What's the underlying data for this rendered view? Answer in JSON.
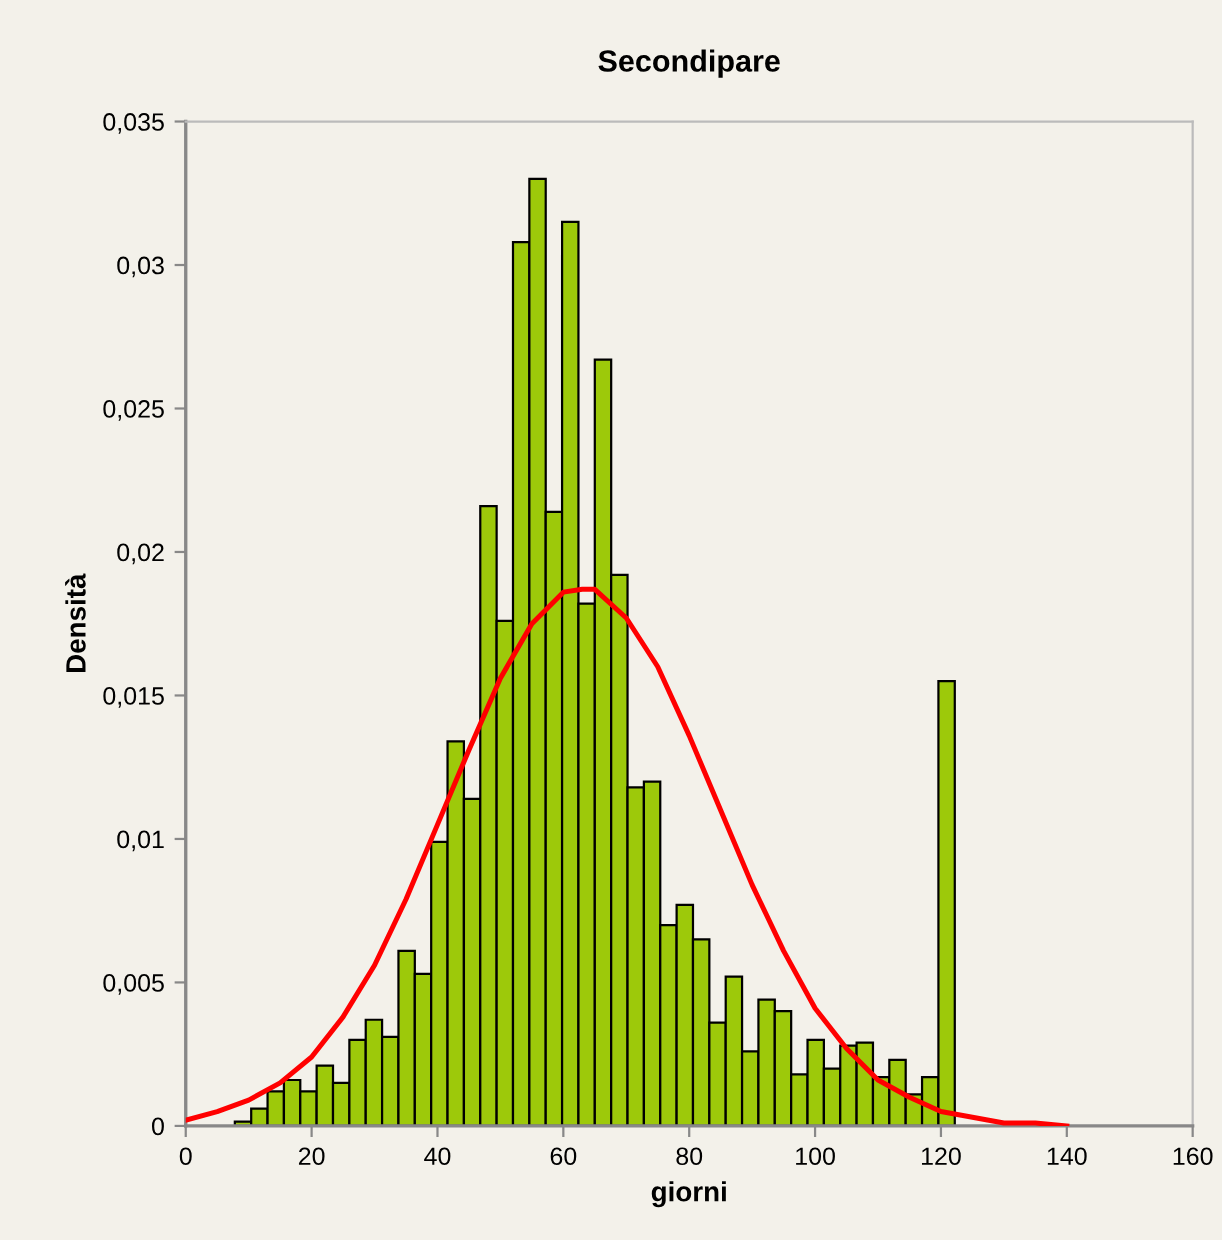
{
  "chart_data": {
    "type": "histogram",
    "title": "Secondipare",
    "xlabel": "giorni",
    "ylabel": "Densità",
    "bins": [
      0,
      2.6,
      5.2,
      7.8,
      10.4,
      13,
      15.6,
      18.2,
      20.8,
      23.4,
      26,
      28.6,
      31.2,
      33.8,
      36.4,
      39,
      41.6,
      44.2,
      46.8,
      49.4,
      52,
      54.6,
      57.2,
      59.8,
      62.4,
      65,
      67.6,
      70.2,
      72.8,
      75.4,
      78,
      80.6,
      83.2,
      85.8,
      88.4,
      91,
      93.6,
      96.2,
      98.8,
      101.4,
      104,
      106.6,
      109.2,
      111.8,
      114.4,
      117,
      119.6,
      122.2,
      124.8,
      127.4,
      130
    ],
    "values": [
      0,
      0,
      0,
      0.00015,
      0.0006,
      0.0012,
      0.0016,
      0.0012,
      0.0021,
      0.0015,
      0.003,
      0.0037,
      0.0031,
      0.0061,
      0.0053,
      0.0099,
      0.0134,
      0.0114,
      0.0216,
      0.0176,
      0.0308,
      0.033,
      0.0214,
      0.0315,
      0.0182,
      0.0267,
      0.0192,
      0.0118,
      0.012,
      0.007,
      0.0077,
      0.0065,
      0.0036,
      0.0052,
      0.0026,
      0.0044,
      0.004,
      0.0018,
      0.003,
      0.002,
      0.0028,
      0.0029,
      0.0017,
      0.0023,
      0.0011,
      0.0017,
      0.0155,
      0,
      0,
      0
    ],
    "color": "#9dc90a",
    "series": [
      {
        "type": "line",
        "color": "#ff0000",
        "x": [
          0,
          5,
          10,
          15,
          20,
          25,
          30,
          35,
          40,
          45,
          50,
          55,
          60,
          63,
          65,
          70,
          75,
          80,
          85,
          90,
          95,
          100,
          105,
          110,
          115,
          120,
          125,
          130,
          135,
          140
        ],
        "values": [
          0.0002,
          0.0005,
          0.0009,
          0.0015,
          0.0024,
          0.0038,
          0.0056,
          0.0079,
          0.0105,
          0.0131,
          0.0156,
          0.0175,
          0.0186,
          0.0187,
          0.0187,
          0.0177,
          0.016,
          0.0136,
          0.011,
          0.0084,
          0.0061,
          0.0041,
          0.0027,
          0.0016,
          0.001,
          0.0005,
          0.0003,
          0.0001,
          0.0001,
          0
        ]
      }
    ],
    "xlim": [
      0,
      160
    ],
    "xticks": [
      0,
      20,
      40,
      60,
      80,
      100,
      120,
      140,
      160
    ],
    "ylim": [
      0,
      0.035
    ],
    "yticks": [
      {
        "value": 0,
        "label": "0"
      },
      {
        "value": 0.005,
        "label": "0,005"
      },
      {
        "value": 0.01,
        "label": "0,01"
      },
      {
        "value": 0.015,
        "label": "0,015"
      },
      {
        "value": 0.02,
        "label": "0,02"
      },
      {
        "value": 0.025,
        "label": "0,025"
      },
      {
        "value": 0.03,
        "label": "0,03"
      },
      {
        "value": 0.035,
        "label": "0,035"
      }
    ],
    "grid": false,
    "legend": false
  }
}
